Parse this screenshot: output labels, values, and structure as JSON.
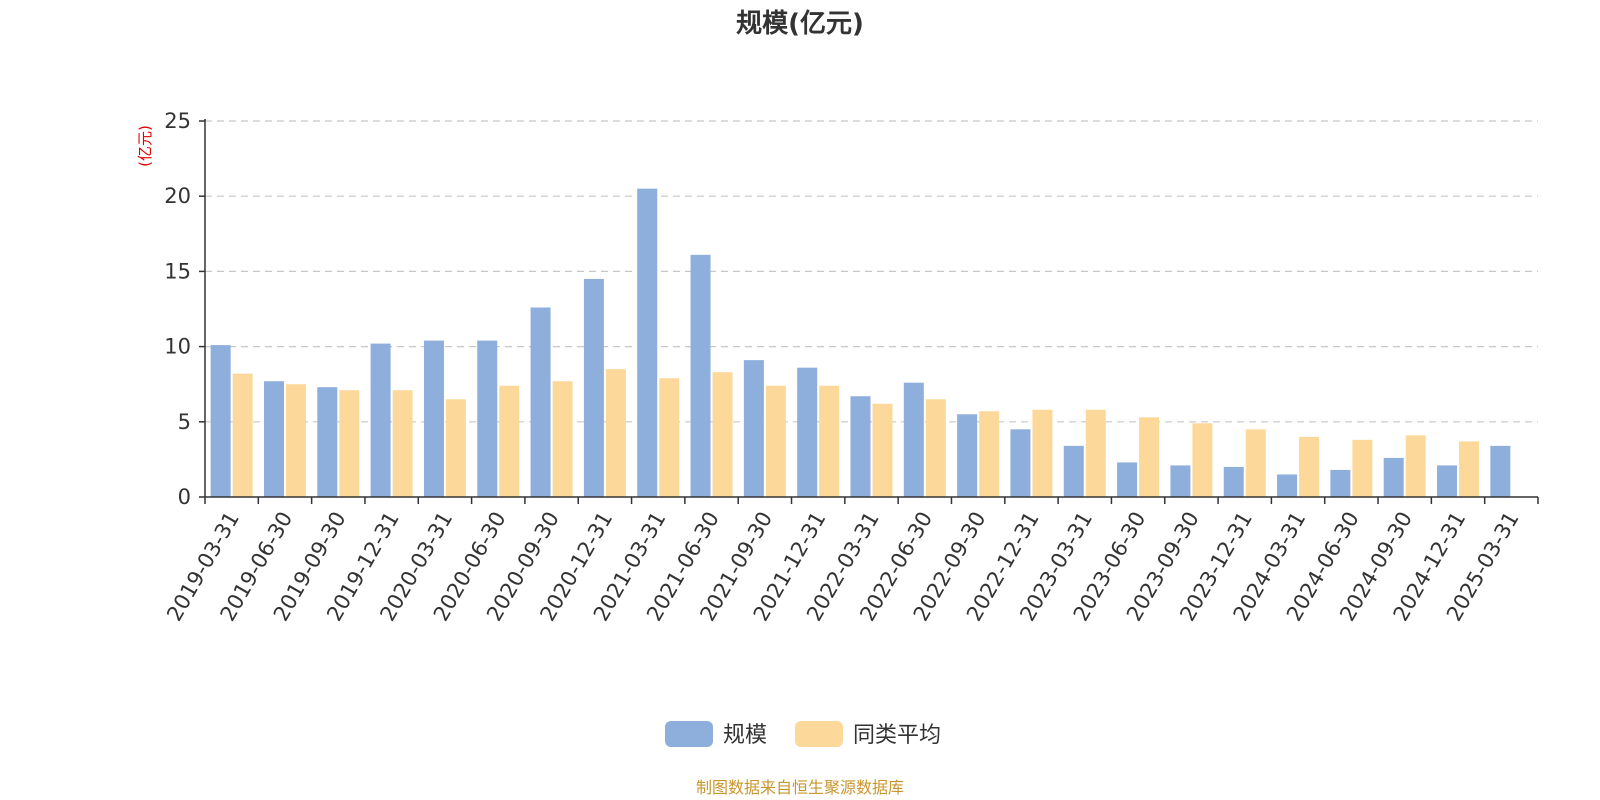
{
  "chart_data": {
    "type": "bar",
    "title": "规模(亿元)",
    "ylabel": "(亿元)",
    "ylim": [
      0,
      25
    ],
    "yticks": [
      0,
      5,
      10,
      15,
      20,
      25
    ],
    "grid": true,
    "legend_position": "bottom",
    "categories": [
      "2019-03-31",
      "2019-06-30",
      "2019-09-30",
      "2019-12-31",
      "2020-03-31",
      "2020-06-30",
      "2020-09-30",
      "2020-12-31",
      "2021-03-31",
      "2021-06-30",
      "2021-09-30",
      "2021-12-31",
      "2022-03-31",
      "2022-06-30",
      "2022-09-30",
      "2022-12-31",
      "2023-03-31",
      "2023-06-30",
      "2023-09-30",
      "2023-12-31",
      "2024-03-31",
      "2024-06-30",
      "2024-09-30",
      "2024-12-31",
      "2025-03-31"
    ],
    "series": [
      {
        "name": "规模",
        "color": "#8eaedc",
        "values": [
          10.1,
          7.7,
          7.3,
          10.2,
          10.4,
          10.4,
          12.6,
          14.5,
          20.5,
          16.1,
          9.1,
          8.6,
          6.7,
          7.6,
          5.5,
          4.5,
          3.4,
          2.3,
          2.1,
          2.0,
          1.5,
          1.8,
          2.6,
          2.1,
          3.4
        ]
      },
      {
        "name": "同类平均",
        "color": "#fdd89b",
        "values": [
          8.2,
          7.5,
          7.1,
          7.1,
          6.5,
          7.4,
          7.7,
          8.5,
          7.9,
          8.3,
          7.4,
          7.4,
          6.2,
          6.5,
          5.7,
          5.8,
          5.8,
          5.3,
          4.9,
          4.5,
          4.0,
          3.8,
          4.1,
          3.7,
          null
        ]
      }
    ]
  },
  "footer": {
    "source": "制图数据来自恒生聚源数据库"
  }
}
